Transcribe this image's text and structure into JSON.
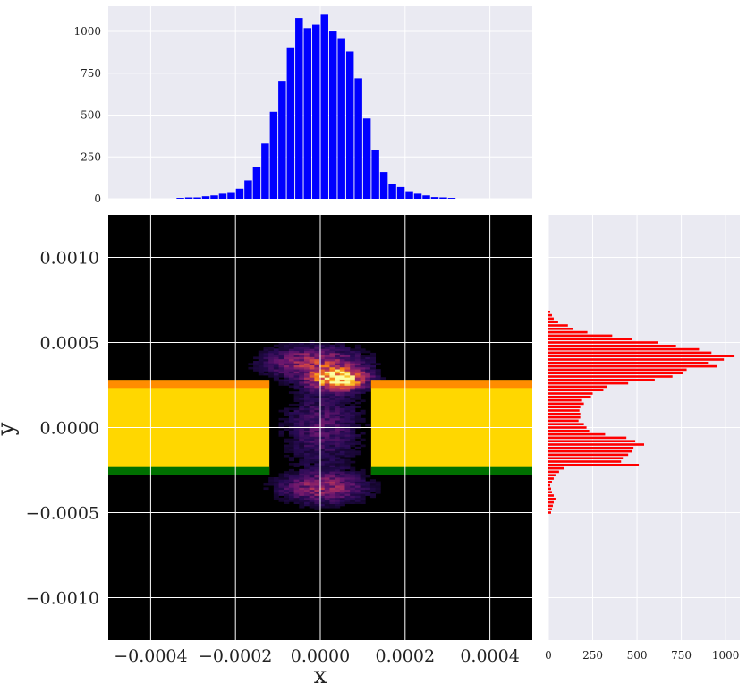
{
  "chart_data": [
    {
      "type": "bar",
      "panel": "top-marginal",
      "color": "#0000ff",
      "xlim": [
        -0.0005,
        0.0005
      ],
      "ylim": [
        0,
        1150
      ],
      "yticks": [
        0,
        250,
        500,
        750,
        1000
      ],
      "ytick_labels": [
        "0",
        "250",
        "500",
        "750",
        "1000"
      ],
      "x": [
        -0.00033,
        -0.00031,
        -0.00029,
        -0.00027,
        -0.00025,
        -0.00023,
        -0.00021,
        -0.00019,
        -0.00017,
        -0.00015,
        -0.00013,
        -0.00011,
        -9e-05,
        -7e-05,
        -5e-05,
        -3e-05,
        -1e-05,
        1e-05,
        3e-05,
        5e-05,
        7e-05,
        9e-05,
        0.00011,
        0.00013,
        0.00015,
        0.00017,
        0.00019,
        0.00021,
        0.00023,
        0.00025,
        0.00027,
        0.00029,
        0.00031
      ],
      "values": [
        5,
        8,
        8,
        15,
        20,
        30,
        40,
        60,
        110,
        190,
        330,
        520,
        700,
        900,
        1080,
        1020,
        1040,
        1100,
        1000,
        960,
        880,
        720,
        480,
        290,
        160,
        90,
        70,
        45,
        30,
        20,
        10,
        8,
        5
      ]
    },
    {
      "type": "heatmap",
      "panel": "main",
      "xlabel": "x",
      "ylabel": "y",
      "xlim": [
        -0.0005,
        0.0005
      ],
      "ylim": [
        -0.00125,
        0.00125
      ],
      "xticks": [
        -0.0004,
        -0.0002,
        0.0,
        0.0002,
        0.0004
      ],
      "xtick_labels": [
        "−0.0004",
        "−0.0002",
        "0.0000",
        "0.0002",
        "0.0004"
      ],
      "yticks": [
        0.001,
        0.0005,
        0.0,
        -0.0005,
        -0.001
      ],
      "ytick_labels": [
        "0.0010",
        "0.0005",
        "0.0000",
        "−0.0005",
        "−0.0010"
      ],
      "colormap": "inferno",
      "hotspots": [
        {
          "x": 4e-05,
          "y": 0.00028,
          "intensity": 1.0
        },
        {
          "x": -2e-05,
          "y": 0.00038,
          "intensity": 0.45
        },
        {
          "x": 0.0,
          "y": -0.00036,
          "intensity": 0.4
        },
        {
          "x": 0.0,
          "y": 0.0,
          "intensity": 0.25
        }
      ],
      "slits": [
        {
          "x0": -0.0005,
          "x1": -0.00012,
          "y0": -0.00028,
          "y1": 0.00028
        },
        {
          "x0": 0.00012,
          "x1": 0.0005,
          "y0": -0.00028,
          "y1": 0.00028
        }
      ],
      "slit_colors": {
        "body": "#ffd700",
        "top_edge": "#ff8c00",
        "bottom_edge": "#007000"
      }
    },
    {
      "type": "bar",
      "panel": "right-marginal",
      "orientation": "horizontal",
      "color": "#ff0000",
      "xlim": [
        0,
        1080
      ],
      "xticks": [
        0,
        250,
        500,
        750,
        1000
      ],
      "xtick_labels": [
        "0",
        "250",
        "500",
        "750",
        "1000"
      ],
      "y": [
        0.00068,
        0.00066,
        0.00064,
        0.00062,
        0.0006,
        0.00058,
        0.00056,
        0.00054,
        0.00052,
        0.0005,
        0.00048,
        0.00046,
        0.00044,
        0.00042,
        0.0004,
        0.00038,
        0.00036,
        0.00034,
        0.00032,
        0.0003,
        0.00028,
        0.00026,
        0.00024,
        0.00022,
        0.0002,
        0.00018,
        0.00016,
        0.00014,
        0.00012,
        0.0001,
        8e-05,
        6e-05,
        4e-05,
        2e-05,
        0.0,
        -2e-05,
        -4e-05,
        -6e-05,
        -8e-05,
        -0.0001,
        -0.00012,
        -0.00014,
        -0.00016,
        -0.00018,
        -0.0002,
        -0.00022,
        -0.00024,
        -0.00026,
        -0.00028,
        -0.0003,
        -0.00032,
        -0.00034,
        -0.00036,
        -0.00038,
        -0.0004,
        -0.00042,
        -0.00044,
        -0.00046,
        -0.00048,
        -0.0005
      ],
      "values": [
        10,
        20,
        30,
        55,
        110,
        140,
        220,
        360,
        470,
        620,
        720,
        850,
        920,
        1050,
        990,
        900,
        950,
        780,
        760,
        700,
        600,
        450,
        330,
        310,
        250,
        240,
        190,
        200,
        180,
        175,
        180,
        180,
        170,
        200,
        215,
        230,
        320,
        440,
        490,
        540,
        480,
        470,
        450,
        420,
        410,
        510,
        90,
        60,
        40,
        30,
        20,
        10,
        15,
        20,
        30,
        40,
        30,
        25,
        20,
        15
      ]
    }
  ]
}
